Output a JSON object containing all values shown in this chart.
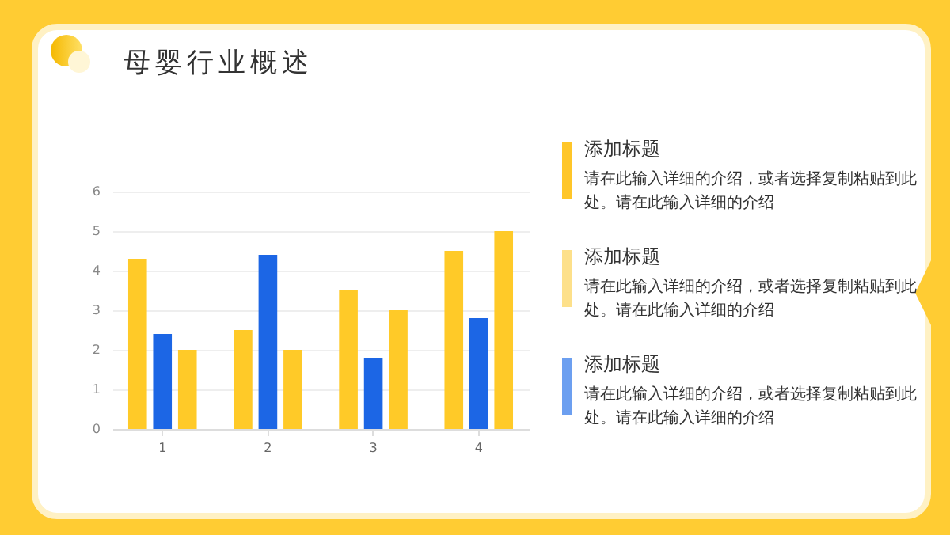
{
  "chart_data": {
    "type": "bar",
    "title": "母婴行业概述",
    "categories": [
      "1",
      "2",
      "3",
      "4"
    ],
    "series": [
      {
        "color": "#ffca28",
        "values": [
          4.3,
          2.5,
          3.5,
          4.5
        ]
      },
      {
        "color": "#1c66e5",
        "values": [
          2.4,
          4.4,
          1.8,
          2.8
        ]
      },
      {
        "color": "#ffca28",
        "values": [
          2,
          2,
          3,
          5
        ]
      }
    ],
    "ylim": [
      0,
      6
    ],
    "yticks": [
      0,
      1,
      2,
      3,
      4,
      5,
      6
    ],
    "grid": "y",
    "annotations": [
      "添加标题",
      "请在此输入详细的介绍，或者选择复制粘贴到此处。请在此输入详细的介绍",
      "添加标题",
      "请在此输入详细的介绍，或者选择复制粘贴到此处。请在此输入详细的介绍",
      "添加标题",
      "请在此输入详细的介绍，或者选择复制粘贴到此处。请在此输入详细的介绍"
    ]
  }
}
